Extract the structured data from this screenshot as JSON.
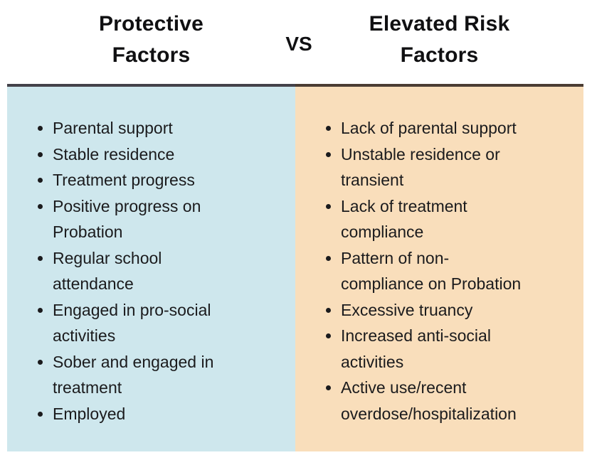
{
  "header": {
    "left_title": "Protective Factors",
    "vs_label": "VS",
    "right_title": "Elevated Risk Factors"
  },
  "colors": {
    "left_panel_bg": "#cee7ed",
    "right_panel_bg": "#f9debb",
    "left_divider": "#44424a",
    "right_divider": "#4b3d33",
    "body_text": "#1b1b1d",
    "header_text": "#101012",
    "page_bg": "#ffffff"
  },
  "panels": {
    "left": {
      "title": "Protective Factors",
      "items": [
        "Parental support",
        "Stable residence",
        "Treatment progress",
        "Positive progress on\nProbation",
        "Regular school\nattendance",
        "Engaged in pro-social\nactivities",
        "Sober and engaged in\ntreatment",
        "Employed"
      ]
    },
    "right": {
      "title": "Elevated Risk Factors",
      "items": [
        "Lack of parental support",
        "Unstable residence or\ntransient",
        "Lack of treatment\ncompliance",
        "Pattern of non-\ncompliance on Probation",
        "Excessive truancy",
        "Increased anti-social\nactivities",
        "Active use/recent\noverdose/hospitalization"
      ]
    }
  }
}
